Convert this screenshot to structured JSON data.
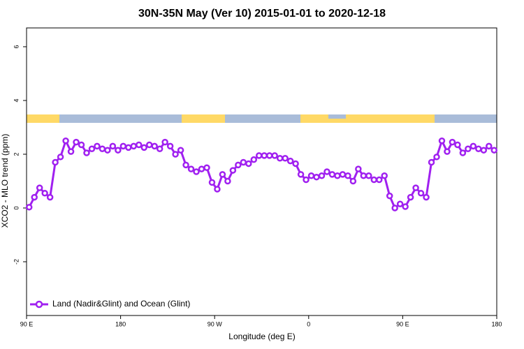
{
  "chart_data": {
    "type": "line",
    "title": "30N-35N May (Ver 10)   2015-01-01 to 2020-12-18",
    "xlabel": "Longitude (deg E)",
    "ylabel": "XCO2 - MLO trend (ppm)",
    "x": [
      92.5,
      97.5,
      102.5,
      107.5,
      112.5,
      117.5,
      122.5,
      127.5,
      132.5,
      137.5,
      142.5,
      147.5,
      152.5,
      157.5,
      162.5,
      167.5,
      172.5,
      177.5,
      182.5,
      187.5,
      192.5,
      197.5,
      202.5,
      207.5,
      212.5,
      217.5,
      222.5,
      227.5,
      232.5,
      237.5,
      242.5,
      247.5,
      252.5,
      257.5,
      262.5,
      267.5,
      272.5,
      277.5,
      282.5,
      287.5,
      292.5,
      297.5,
      302.5,
      307.5,
      312.5,
      317.5,
      322.5,
      327.5,
      332.5,
      337.5,
      342.5,
      347.5,
      352.5,
      357.5,
      362.5,
      367.5,
      372.5,
      377.5,
      382.5,
      387.5,
      392.5,
      397.5,
      402.5,
      407.5,
      412.5,
      417.5,
      422.5,
      427.5,
      432.5,
      437.5,
      442.5,
      447.5,
      452.5,
      457.5,
      462.5,
      467.5,
      472.5,
      477.5,
      482.5,
      487.5,
      492.5,
      497.5,
      502.5,
      507.5,
      512.5,
      517.5,
      522.5,
      527.5,
      532.5,
      537.5
    ],
    "series": [
      {
        "name": "Land (Nadir&Glint) and Ocean (Glint)",
        "color": "#a020f0",
        "values": [
          0.03,
          0.4,
          0.75,
          0.55,
          0.4,
          1.7,
          1.9,
          2.5,
          2.1,
          2.45,
          2.35,
          2.05,
          2.2,
          2.3,
          2.2,
          2.15,
          2.3,
          2.15,
          2.3,
          2.25,
          2.3,
          2.35,
          2.25,
          2.35,
          2.3,
          2.2,
          2.45,
          2.3,
          2.0,
          2.15,
          1.6,
          1.45,
          1.35,
          1.45,
          1.5,
          0.95,
          0.7,
          1.25,
          1.0,
          1.4,
          1.6,
          1.7,
          1.65,
          1.8,
          1.95,
          1.95,
          1.95,
          1.95,
          1.85,
          1.85,
          1.75,
          1.65,
          1.25,
          1.05,
          1.2,
          1.15,
          1.2,
          1.35,
          1.25,
          1.2,
          1.25,
          1.2,
          1.0,
          1.45,
          1.2,
          1.2,
          1.05,
          1.05,
          1.2,
          0.45,
          0.0,
          0.15,
          0.05,
          0.4,
          0.75,
          0.55,
          0.4,
          1.7,
          1.9,
          2.5,
          2.1,
          2.45,
          2.35,
          2.05,
          2.2,
          2.3,
          2.2,
          2.15,
          2.3,
          2.15
        ]
      }
    ],
    "xlim": [
      90,
      540
    ],
    "xticks": [
      {
        "value": 90,
        "label": "90 E"
      },
      {
        "value": 180,
        "label": "180"
      },
      {
        "value": 270,
        "label": "90 W"
      },
      {
        "value": 360,
        "label": "0"
      },
      {
        "value": 450,
        "label": "90 E"
      },
      {
        "value": 540,
        "label": "180"
      }
    ],
    "ylim": [
      -4,
      6.7
    ],
    "yticks": [
      -2,
      0,
      2,
      4,
      6
    ],
    "legend": "bottomleft"
  }
}
